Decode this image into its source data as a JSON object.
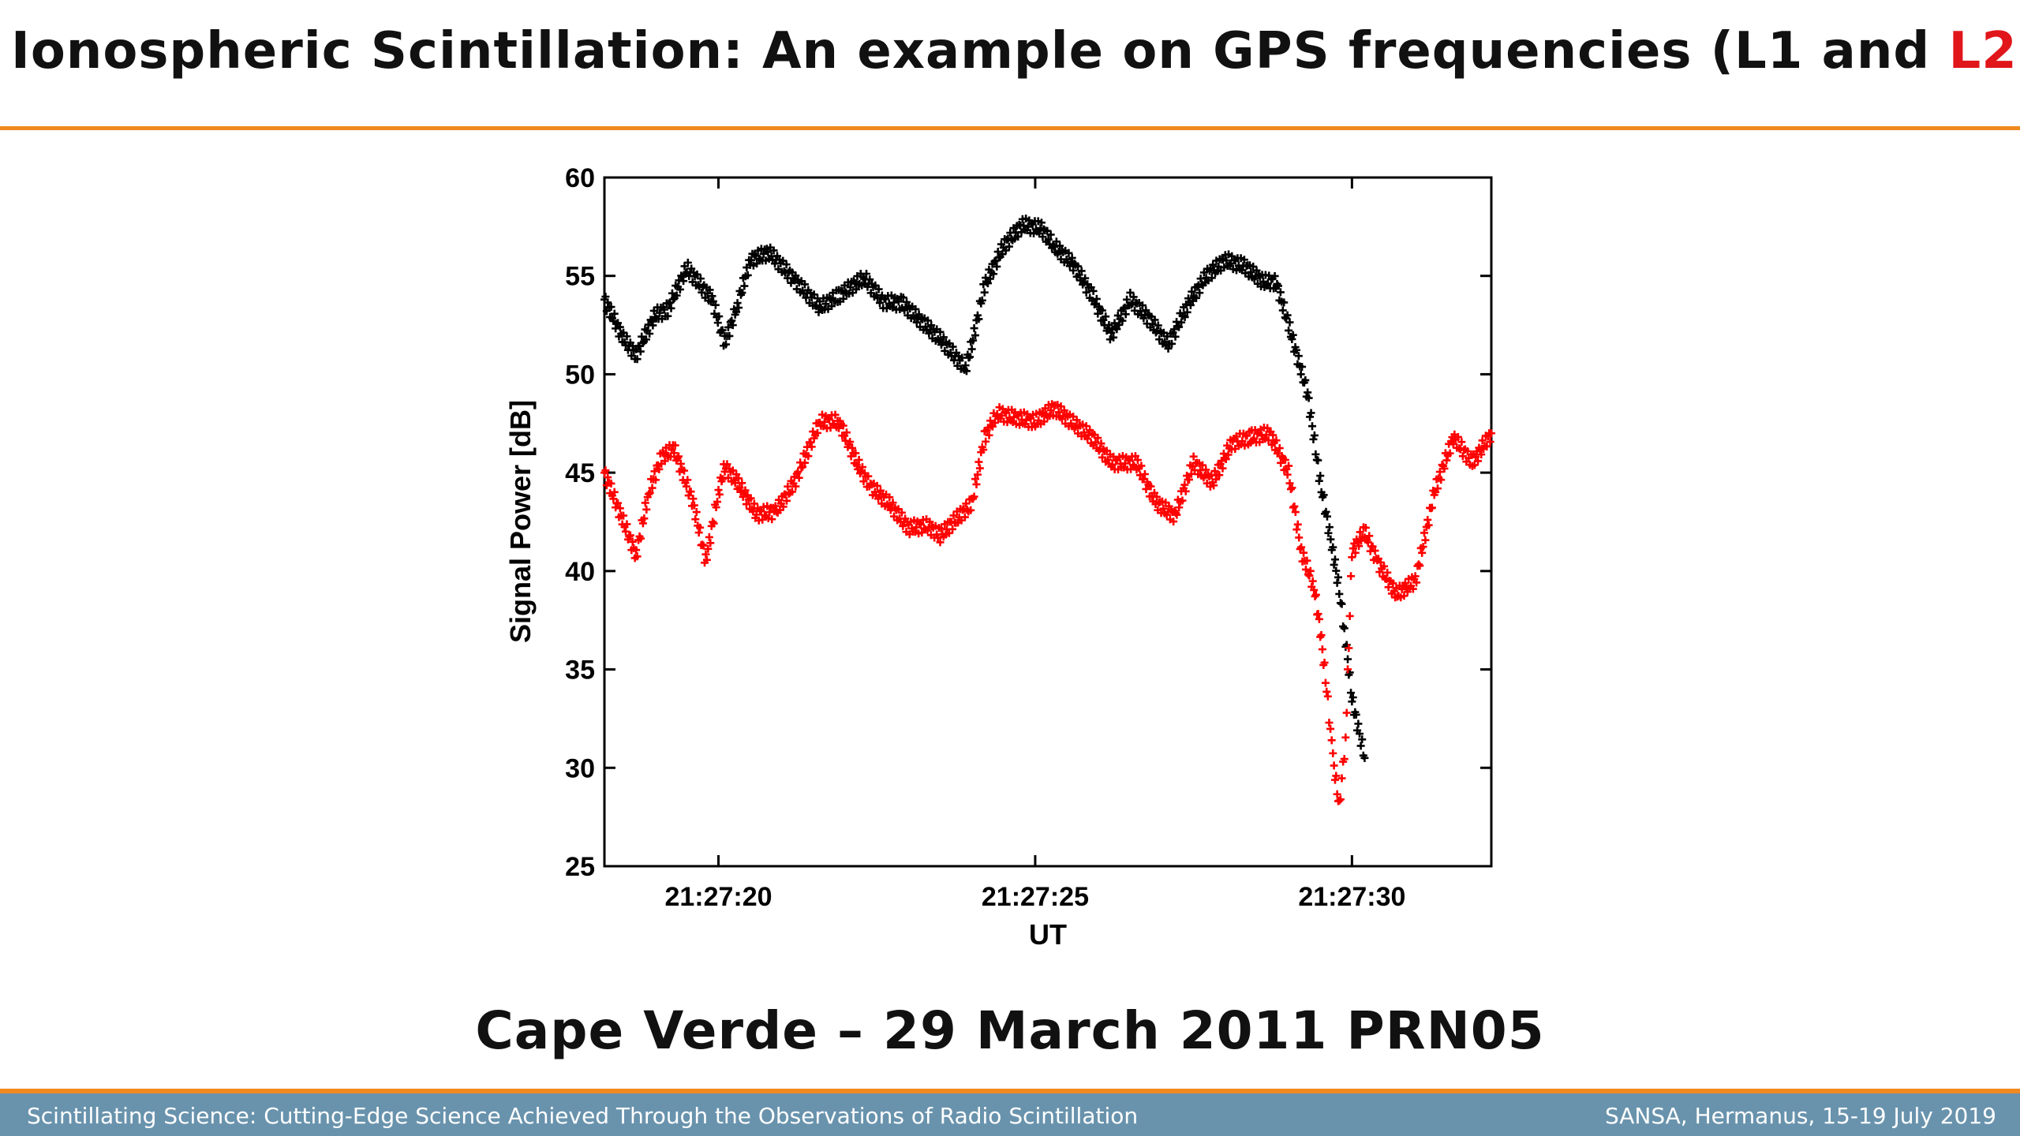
{
  "slide": {
    "title_prefix": "Ionospheric Scintillation: An example on GPS frequencies (L1 and ",
    "title_highlight": "L2",
    "title_suffix": ")",
    "caption": "Cape Verde – 29 March 2011 PRN05",
    "footer_left": "Scintillating Science: Cutting-Edge Science Achieved Through the Observations of Radio Scintillation",
    "footer_right": "SANSA, Hermanus, 15-19 July 2019"
  },
  "colors": {
    "accent_orange": "#f0891f",
    "footer_blue": "#6993ad",
    "highlight_red": "#e0161b",
    "series_l1": "#000000",
    "series_l2": "#ff0000"
  },
  "chart_data": {
    "type": "scatter",
    "title": "",
    "xlabel": "UT",
    "ylabel": "Signal Power [dB]",
    "xlim": [
      "21:27:18.2",
      "21:27:32.2"
    ],
    "ylim": [
      25,
      60
    ],
    "xticks": [
      "21:27:20",
      "21:27:25",
      "21:27:30"
    ],
    "yticks": [
      25,
      30,
      35,
      40,
      45,
      50,
      55,
      60
    ],
    "grid": false,
    "legend": "none",
    "marker": "plus",
    "series": [
      {
        "color": "#000000",
        "time_seconds": [
          18.2,
          18.5,
          18.7,
          19.0,
          19.2,
          19.5,
          19.9,
          20.1,
          20.3,
          20.5,
          20.8,
          21.2,
          21.6,
          21.9,
          22.3,
          22.6,
          22.9,
          23.2,
          23.5,
          23.9,
          24.0,
          24.2,
          24.5,
          24.8,
          25.1,
          25.3,
          25.6,
          25.9,
          26.2,
          26.5,
          26.8,
          27.1,
          27.4,
          27.7,
          28.0,
          28.3,
          28.6,
          28.8,
          29.0,
          29.3,
          29.5,
          29.7,
          29.8,
          29.9,
          30.0,
          30.1,
          30.2
        ],
        "power_db": [
          53.8,
          51.8,
          51.0,
          53.0,
          53.3,
          55.4,
          53.8,
          51.6,
          53.5,
          55.8,
          56.2,
          54.8,
          53.4,
          54.0,
          54.9,
          53.7,
          53.6,
          52.7,
          51.8,
          50.3,
          51.5,
          54.5,
          56.5,
          57.6,
          57.4,
          56.5,
          55.6,
          54.0,
          52.0,
          53.8,
          52.8,
          51.5,
          53.5,
          55.0,
          55.8,
          55.5,
          54.7,
          54.7,
          52.5,
          49.0,
          44.5,
          41.0,
          39.0,
          36.5,
          33.5,
          32.0,
          30.5
        ]
      },
      {
        "color": "#ff0000",
        "time_seconds": [
          18.2,
          18.5,
          18.7,
          18.9,
          19.1,
          19.3,
          19.6,
          19.8,
          20.0,
          20.1,
          20.3,
          20.6,
          20.9,
          21.2,
          21.6,
          21.9,
          22.2,
          22.4,
          22.7,
          23.0,
          23.3,
          23.5,
          23.8,
          24.0,
          24.2,
          24.4,
          24.7,
          25.0,
          25.3,
          25.6,
          25.9,
          26.2,
          26.6,
          26.9,
          27.2,
          27.5,
          27.8,
          28.1,
          28.4,
          28.7,
          29.0,
          29.2,
          29.4,
          29.5,
          29.6,
          29.7,
          29.8,
          29.9,
          30.0,
          30.2,
          30.4,
          30.7,
          31.0,
          31.3,
          31.6,
          31.9,
          32.2
        ],
        "power_db": [
          45.0,
          42.5,
          40.8,
          44.0,
          45.8,
          46.2,
          43.5,
          40.5,
          44.0,
          45.3,
          44.5,
          42.9,
          43.0,
          44.5,
          47.6,
          47.6,
          45.4,
          44.3,
          43.4,
          42.2,
          42.3,
          41.8,
          42.8,
          43.4,
          46.8,
          48.0,
          47.8,
          47.6,
          48.3,
          47.5,
          46.8,
          45.5,
          45.5,
          43.5,
          42.8,
          45.5,
          44.5,
          46.5,
          46.8,
          47.0,
          45.0,
          41.0,
          39.2,
          37.0,
          34.0,
          30.5,
          28.0,
          31.5,
          41.0,
          42.0,
          40.5,
          38.8,
          39.5,
          44.0,
          46.8,
          45.5,
          47.0
        ]
      }
    ]
  }
}
